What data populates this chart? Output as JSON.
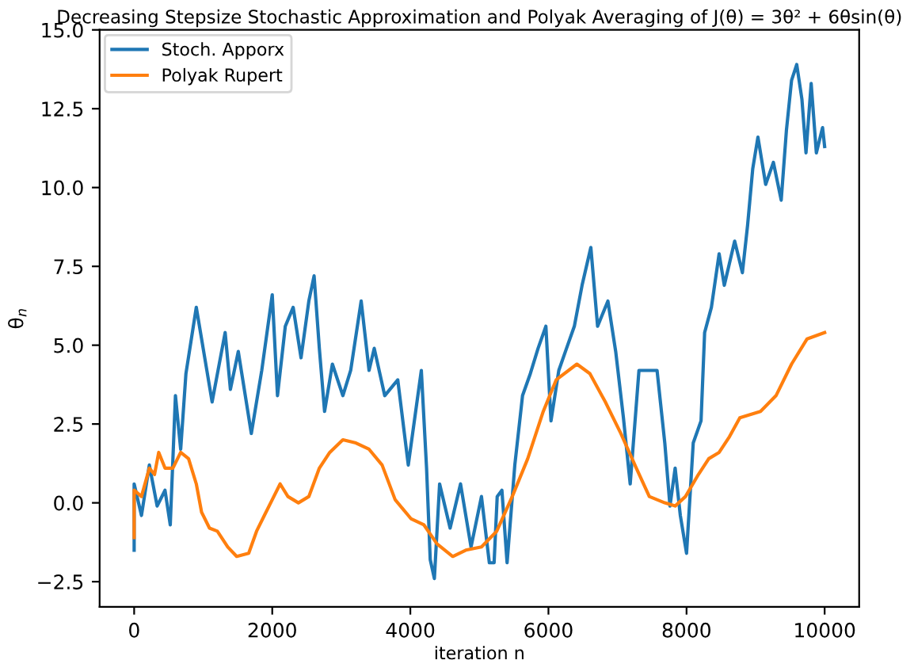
{
  "chart_data": {
    "type": "line",
    "title": "Decreasing Stepsize Stochastic Approximation and Polyak Averaging of J(θ) = 3θ² + 6θsin(θ)",
    "xlabel": "iteration n",
    "ylabel": "θ$_{n}$",
    "series": [
      {
        "name": "Stoch. Apporx",
        "color": "#1f77b4",
        "x": [
          0,
          0,
          106,
          220,
          333,
          447,
          523,
          598,
          674,
          750,
          900,
          1053,
          1129,
          1318,
          1394,
          1508,
          1697,
          1848,
          2000,
          2076,
          2189,
          2303,
          2417,
          2530,
          2606,
          2682,
          2758,
          2871,
          3023,
          3136,
          3288,
          3402,
          3477,
          3629,
          3818,
          3970,
          4159,
          4235,
          4288,
          4348,
          4424,
          4576,
          4727,
          4879,
          5030,
          5144,
          5213,
          5258,
          5326,
          5401,
          5513,
          5625,
          5738,
          5850,
          5963,
          6037,
          6150,
          6262,
          6375,
          6487,
          6614,
          6712,
          6861,
          6974,
          7086,
          7184,
          7311,
          7423,
          7573,
          7685,
          7760,
          7835,
          7910,
          8000,
          8097,
          8210,
          8262,
          8360,
          8472,
          8547,
          8697,
          8809,
          8884,
          8959,
          9034,
          9146,
          9258,
          9371,
          9446,
          9521,
          9596,
          9671,
          9730,
          9805,
          9880,
          9970,
          10000
        ],
        "values": [
          -1.5,
          0.6,
          -0.4,
          1.2,
          -0.1,
          0.4,
          -0.7,
          3.4,
          1.7,
          4.1,
          6.2,
          4.2,
          3.2,
          5.4,
          3.6,
          4.8,
          2.2,
          4.2,
          6.6,
          3.4,
          5.6,
          6.2,
          4.6,
          6.4,
          7.2,
          4.9,
          2.9,
          4.4,
          3.4,
          4.2,
          6.4,
          4.2,
          4.9,
          3.4,
          3.9,
          1.2,
          4.2,
          1.1,
          -1.8,
          -2.4,
          0.6,
          -0.8,
          0.6,
          -1.4,
          0.2,
          -1.9,
          -1.9,
          0.2,
          0.4,
          -1.9,
          1.2,
          3.4,
          4.1,
          4.9,
          5.6,
          2.6,
          4.2,
          4.9,
          5.6,
          6.9,
          8.1,
          5.6,
          6.4,
          4.8,
          2.7,
          0.6,
          4.2,
          4.2,
          4.2,
          1.9,
          -0.1,
          1.1,
          -0.4,
          -1.6,
          1.9,
          2.6,
          5.4,
          6.2,
          7.9,
          6.9,
          8.3,
          7.3,
          8.8,
          10.6,
          11.6,
          10.1,
          10.8,
          9.6,
          11.8,
          13.4,
          13.9,
          12.8,
          11.1,
          13.3,
          11.1,
          11.9,
          11.3
        ]
      },
      {
        "name": "Polyak Rupert",
        "color": "#ff7f0e",
        "x": [
          0,
          0,
          106,
          220,
          295,
          356,
          447,
          561,
          674,
          788,
          900,
          977,
          1091,
          1205,
          1356,
          1485,
          1659,
          1773,
          1886,
          2000,
          2114,
          2227,
          2379,
          2530,
          2682,
          2833,
          3023,
          3212,
          3402,
          3591,
          3780,
          4008,
          4197,
          4386,
          4614,
          4803,
          5030,
          5251,
          5476,
          5700,
          5925,
          6112,
          6412,
          6600,
          6824,
          7049,
          7273,
          7461,
          7685,
          7835,
          7985,
          8172,
          8322,
          8472,
          8622,
          8772,
          8921,
          9071,
          9296,
          9521,
          9746,
          10000
        ],
        "values": [
          -1.1,
          0.4,
          0.2,
          1.1,
          0.9,
          1.6,
          1.1,
          1.1,
          1.6,
          1.4,
          0.6,
          -0.3,
          -0.8,
          -0.9,
          -1.4,
          -1.7,
          -1.6,
          -0.9,
          -0.4,
          0.1,
          0.6,
          0.2,
          0.0,
          0.2,
          1.1,
          1.6,
          2.0,
          1.9,
          1.7,
          1.2,
          0.1,
          -0.5,
          -0.7,
          -1.3,
          -1.7,
          -1.5,
          -1.4,
          -0.9,
          0.2,
          1.4,
          2.9,
          3.9,
          4.4,
          4.1,
          3.2,
          2.2,
          1.1,
          0.2,
          0.0,
          -0.1,
          0.2,
          0.9,
          1.4,
          1.6,
          2.1,
          2.7,
          2.8,
          2.9,
          3.4,
          4.4,
          5.2,
          5.4
        ]
      }
    ],
    "xlim": [
      -500,
      10500
    ],
    "ylim": [
      -3.3,
      15.0
    ],
    "xticks": [
      0,
      2000,
      4000,
      6000,
      8000,
      10000
    ],
    "yticks": [
      {
        "value": -2.5,
        "label": "−2.5"
      },
      {
        "value": 0,
        "label": "0.0"
      },
      {
        "value": 2.5,
        "label": "2.5"
      },
      {
        "value": 5,
        "label": "5.0"
      },
      {
        "value": 7.5,
        "label": "7.5"
      },
      {
        "value": 10,
        "label": "10.0"
      },
      {
        "value": 12.5,
        "label": "12.5"
      },
      {
        "value": 15,
        "label": "15.0"
      }
    ],
    "legend": "top left",
    "grid": false
  }
}
